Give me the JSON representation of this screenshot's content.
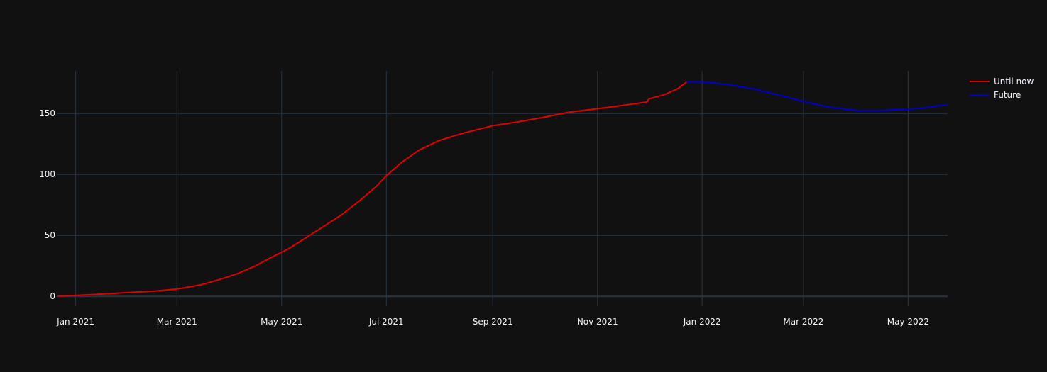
{
  "chart_data": {
    "type": "line",
    "title": "",
    "xlabel": "",
    "ylabel": "",
    "xlim": [
      "2020-12-21",
      "2022-05-24"
    ],
    "ylim": [
      -8,
      185
    ],
    "grid": true,
    "legend_position": "top-right",
    "background": "#111111",
    "x_ticks": [
      {
        "date": "2021-01-01",
        "label": "Jan 2021"
      },
      {
        "date": "2021-03-01",
        "label": "Mar 2021"
      },
      {
        "date": "2021-05-01",
        "label": "May 2021"
      },
      {
        "date": "2021-07-01",
        "label": "Jul 2021"
      },
      {
        "date": "2021-09-01",
        "label": "Sep 2021"
      },
      {
        "date": "2021-11-01",
        "label": "Nov 2021"
      },
      {
        "date": "2022-01-01",
        "label": "Jan 2022"
      },
      {
        "date": "2022-03-01",
        "label": "Mar 2022"
      },
      {
        "date": "2022-05-01",
        "label": "May 2022"
      }
    ],
    "y_ticks": [
      {
        "value": 0,
        "label": "0"
      },
      {
        "value": 50,
        "label": "50"
      },
      {
        "value": 100,
        "label": "100"
      },
      {
        "value": 150,
        "label": "150"
      }
    ],
    "series": [
      {
        "name": "Until now",
        "color": "#e00000",
        "x": [
          "2020-12-22",
          "2021-01-01",
          "2021-01-15",
          "2021-02-01",
          "2021-02-15",
          "2021-03-01",
          "2021-03-15",
          "2021-03-25",
          "2021-04-05",
          "2021-04-15",
          "2021-04-25",
          "2021-05-05",
          "2021-05-15",
          "2021-05-25",
          "2021-06-05",
          "2021-06-15",
          "2021-06-25",
          "2021-07-01",
          "2021-07-10",
          "2021-07-20",
          "2021-08-01",
          "2021-08-15",
          "2021-09-01",
          "2021-09-15",
          "2021-10-01",
          "2021-10-15",
          "2021-11-01",
          "2021-11-15",
          "2021-11-30",
          "2021-12-01",
          "2021-12-10",
          "2021-12-18",
          "2021-12-23"
        ],
        "y": [
          0.3,
          0.8,
          1.8,
          3.2,
          4.2,
          6,
          9.5,
          13.5,
          18.5,
          24.5,
          32,
          39,
          48,
          57,
          67,
          78,
          90,
          99,
          110,
          120,
          128,
          134,
          140,
          143,
          147,
          151,
          154,
          156.5,
          159.5,
          162,
          165.5,
          170.5,
          176
        ]
      },
      {
        "name": "Future",
        "color": "#0000cd",
        "x": [
          "2021-12-23",
          "2022-01-01",
          "2022-01-15",
          "2022-02-01",
          "2022-02-15",
          "2022-03-01",
          "2022-03-15",
          "2022-04-01",
          "2022-04-15",
          "2022-05-01",
          "2022-05-15",
          "2022-05-24"
        ],
        "y": [
          176,
          176,
          174,
          170,
          165,
          160,
          155.5,
          152.5,
          152.5,
          153.5,
          155.5,
          157.5
        ]
      }
    ]
  }
}
